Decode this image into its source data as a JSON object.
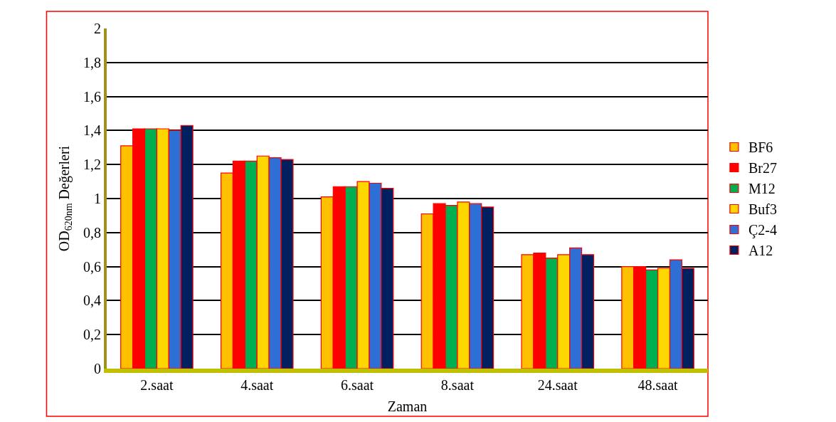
{
  "chart_data": {
    "type": "bar",
    "xlabel": "Zaman",
    "ylabel": "OD$_{620nm}$ Değerleri",
    "categories": [
      "2.saat",
      "4.saat",
      "6.saat",
      "8.saat",
      "24.saat",
      "48.saat"
    ],
    "series": [
      {
        "name": "BF6",
        "color": "#ffc000",
        "values": [
          1.31,
          1.15,
          1.01,
          0.91,
          0.67,
          0.6
        ]
      },
      {
        "name": "Br27",
        "color": "#ff0000",
        "values": [
          1.41,
          1.22,
          1.07,
          0.97,
          0.68,
          0.6
        ]
      },
      {
        "name": "M12",
        "color": "#00b050",
        "values": [
          1.41,
          1.22,
          1.07,
          0.96,
          0.65,
          0.58
        ]
      },
      {
        "name": "Buf3",
        "color": "#ffd700",
        "values": [
          1.41,
          1.25,
          1.1,
          0.98,
          0.67,
          0.59
        ]
      },
      {
        "name": "Ç2-4",
        "color": "#2e6fd6",
        "values": [
          1.4,
          1.24,
          1.09,
          0.97,
          0.71,
          0.64
        ]
      },
      {
        "name": "A12",
        "color": "#002060",
        "values": [
          1.43,
          1.23,
          1.06,
          0.95,
          0.67,
          0.59
        ]
      }
    ],
    "ylim": [
      0,
      2
    ],
    "yticks": [
      0,
      {
        "value": 0.2,
        "label": "0,2"
      },
      {
        "value": 0.4,
        "label": "0,4"
      },
      {
        "value": 0.6,
        "label": "0,6"
      },
      {
        "value": 0.8,
        "label": "0,8"
      },
      1,
      {
        "value": 1.2,
        "label": "1,2"
      },
      {
        "value": 1.4,
        "label": "1,4"
      },
      {
        "value": 1.6,
        "label": "1,6"
      },
      {
        "value": 1.8,
        "label": "1,8"
      },
      2
    ],
    "grid": "y",
    "legend": "right"
  }
}
